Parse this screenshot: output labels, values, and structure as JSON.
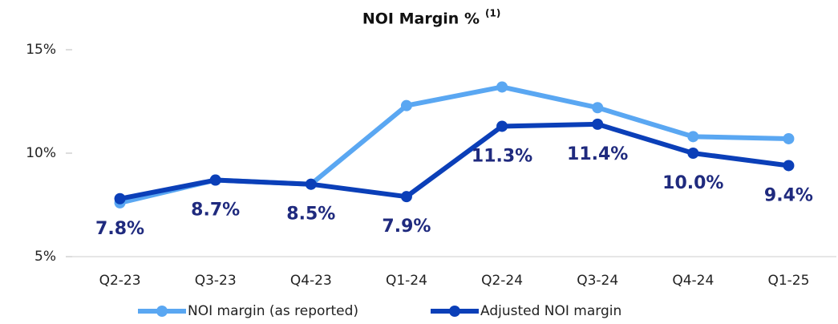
{
  "chart_data": {
    "type": "line",
    "title": "NOI Margin %",
    "title_note": "(1)",
    "categories": [
      "Q2-23",
      "Q3-23",
      "Q4-23",
      "Q1-24",
      "Q2-24",
      "Q3-24",
      "Q4-24",
      "Q1-25"
    ],
    "series": [
      {
        "name": "NOI margin (as reported)",
        "color": "#5aa7f2",
        "values": [
          7.6,
          8.7,
          8.5,
          12.3,
          13.2,
          12.2,
          10.8,
          10.7
        ]
      },
      {
        "name": "Adjusted NOI margin",
        "color": "#0b3fb8",
        "values": [
          7.8,
          8.7,
          8.5,
          7.9,
          11.3,
          11.4,
          10.0,
          9.4
        ],
        "value_labels": [
          "7.8%",
          "8.7%",
          "8.5%",
          "7.9%",
          "11.3%",
          "11.4%",
          "10.0%",
          "9.4%"
        ]
      }
    ],
    "ylim": [
      5,
      15
    ],
    "yticks": [
      {
        "value": 5,
        "label": "5%"
      },
      {
        "value": 10,
        "label": "10%"
      },
      {
        "value": 15,
        "label": "15%"
      }
    ],
    "grid": false,
    "legend": "bottom"
  }
}
